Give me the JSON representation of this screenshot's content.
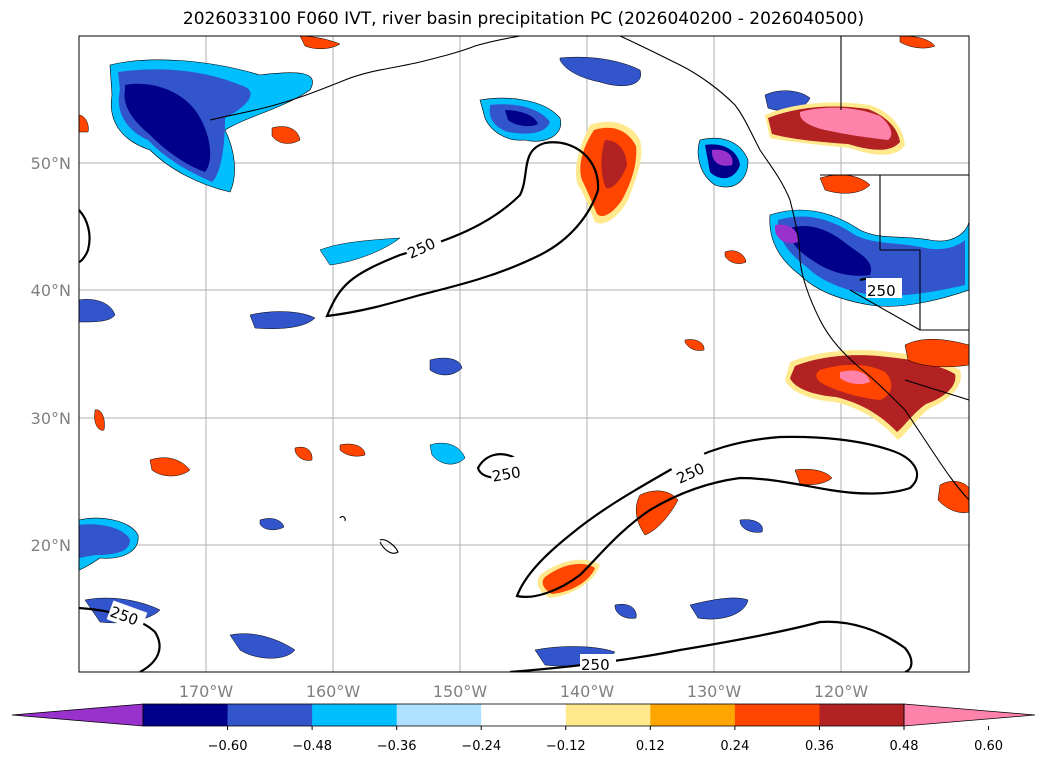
{
  "title": "2026033100 F060 IVT, river basin precipitation PC (2026040200 - 2026040500)",
  "map": {
    "lat_labels": [
      "50°N",
      "40°N",
      "30°N",
      "20°N"
    ],
    "lon_labels": [
      "170°W",
      "160°W",
      "150°W",
      "140°W",
      "130°W",
      "120°W"
    ],
    "ivt_contour_label": "250"
  },
  "colorbar": {
    "colors": [
      "#9932CC",
      "#00008B",
      "#3355CC",
      "#00BFFF",
      "#ADE1FF",
      "#FFFFFF",
      "#FFE98C",
      "#FFA500",
      "#FF4500",
      "#B22222",
      "#FF82AB"
    ],
    "tick_labels": [
      "−0.60",
      "−0.48",
      "−0.36",
      "−0.24",
      "−0.12",
      "0.12",
      "0.24",
      "0.36",
      "0.48",
      "0.60"
    ]
  },
  "colors": {
    "grid": "#b0b0b0",
    "coast": "#000000",
    "label_gray": "#808080"
  }
}
